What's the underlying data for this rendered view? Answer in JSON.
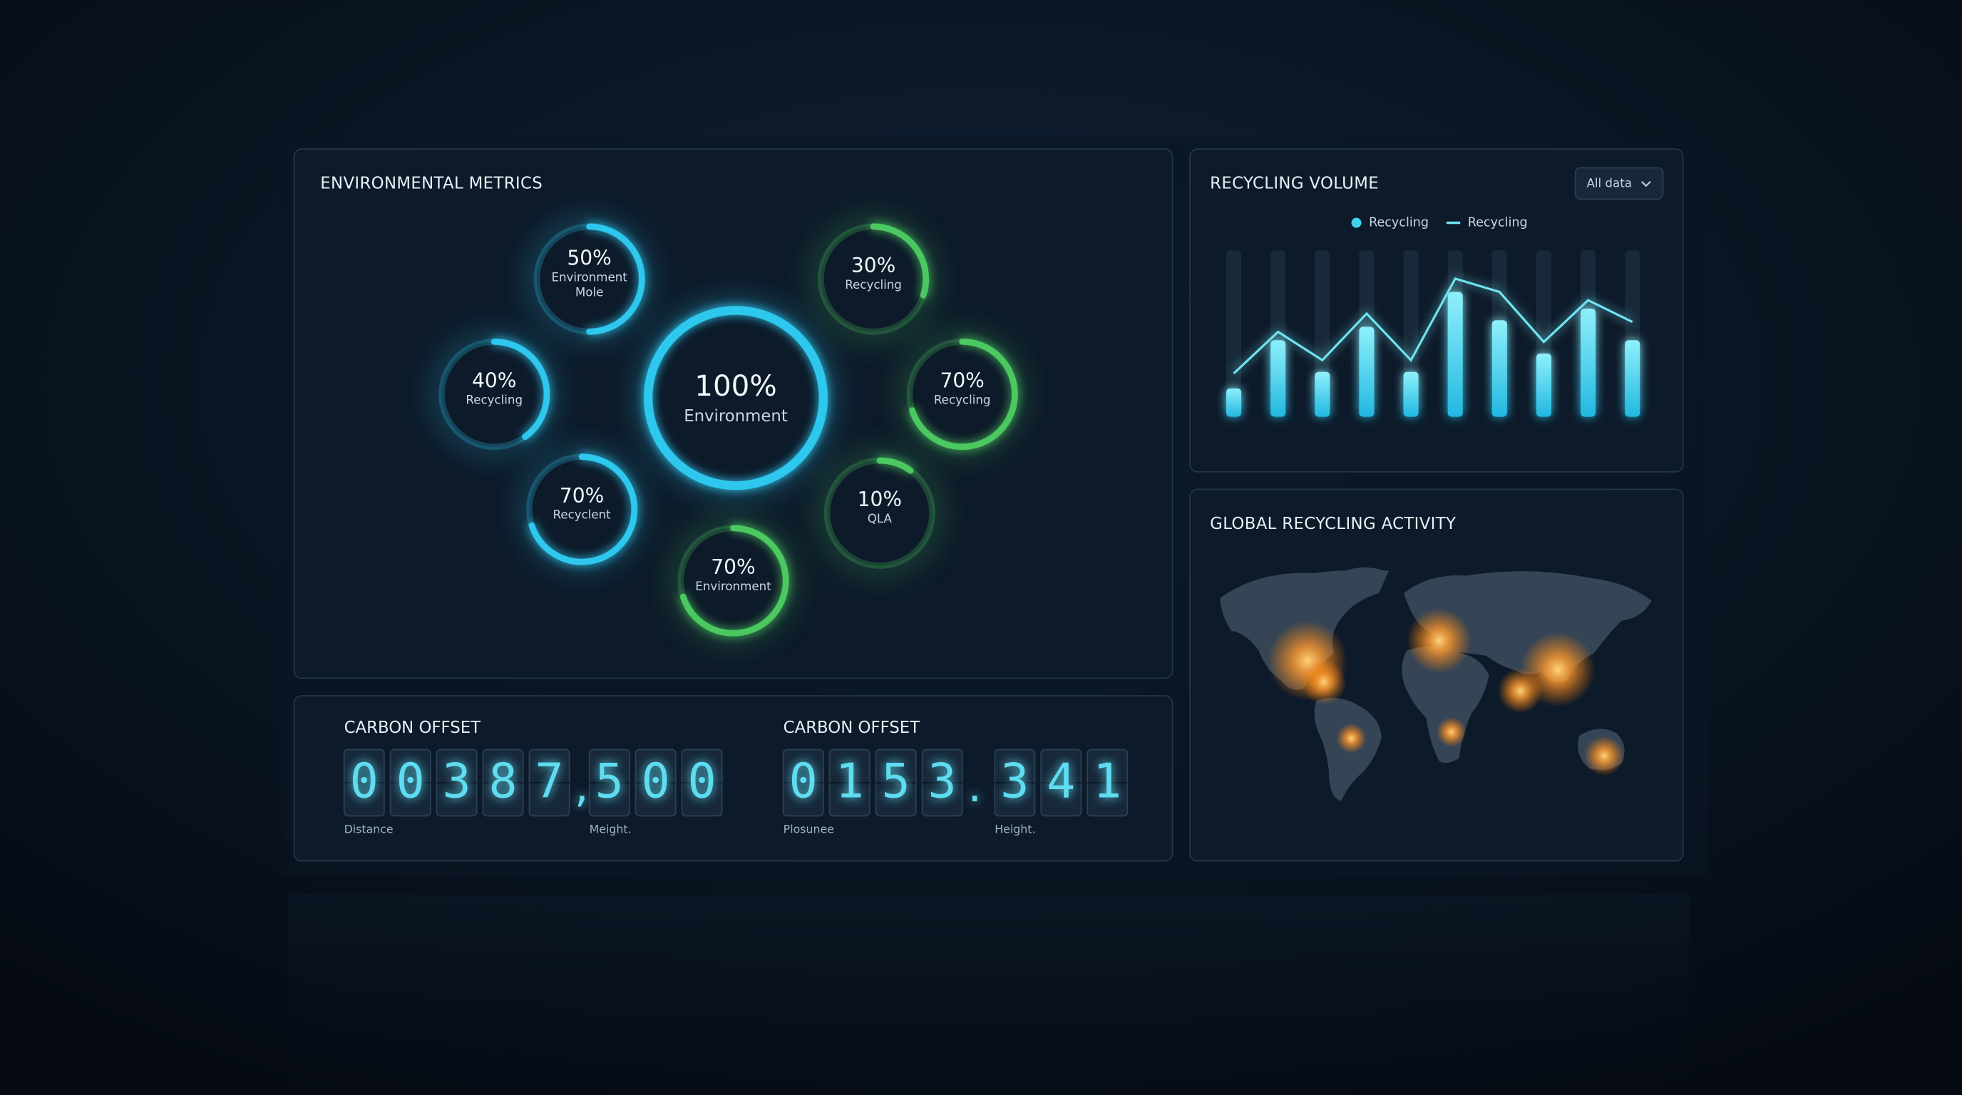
{
  "environmental_metrics": {
    "title": "ENVIRONMENTAL METRICS",
    "gauges": [
      {
        "value": 100,
        "label": "100%",
        "caption": [
          "Environment"
        ],
        "color": "#2ec8ee"
      },
      {
        "value": 50,
        "label": "50%",
        "caption": [
          "Environment",
          "Mole"
        ],
        "color": "#2ec8ee"
      },
      {
        "value": 40,
        "label": "40%",
        "caption": [
          "Recycling"
        ],
        "color": "#2ec8ee"
      },
      {
        "value": 70,
        "label": "70%",
        "caption": [
          "Recyclent"
        ],
        "color": "#2ec8ee"
      },
      {
        "value": 70,
        "label": "70%",
        "caption": [
          "Environment"
        ],
        "color": "#4cc860"
      },
      {
        "value": 10,
        "label": "10%",
        "caption": [
          "QLA"
        ],
        "color": "#4cc860"
      },
      {
        "value": 70,
        "label": "70%",
        "caption": [
          "Recycling"
        ],
        "color": "#4cc860"
      },
      {
        "value": 30,
        "label": "30%",
        "caption": [
          "Recycling"
        ],
        "color": "#4cc860"
      }
    ]
  },
  "chart_data": {
    "type": "bar",
    "title": "RECYCLING VOLUME",
    "filter": "All data",
    "categories": [
      null,
      null,
      null,
      null,
      null,
      null,
      null,
      null,
      null,
      null
    ],
    "ylim": [
      0,
      100
    ],
    "legend": "top",
    "series": [
      {
        "name": "Recycling",
        "type": "bar",
        "color": "#3fd3ef",
        "values": [
          17,
          46,
          27,
          54,
          27,
          75,
          58,
          38,
          65,
          46
        ]
      },
      {
        "name": "Recycling",
        "type": "line",
        "color": "#6fe3f0",
        "values": [
          26,
          51,
          34,
          62,
          34,
          83,
          75,
          45,
          70,
          57
        ]
      }
    ]
  },
  "carbon_offset": [
    {
      "title": "CARBON OFFSET",
      "digits": [
        "0",
        "0",
        "3",
        "8",
        "7",
        ",",
        "5",
        "0",
        "0"
      ],
      "labels": [
        "Distance",
        "Meight."
      ]
    },
    {
      "title": "CARBON OFFSET",
      "digits": [
        "0",
        "1",
        "5",
        "3",
        ".",
        "3",
        "4",
        "1"
      ],
      "labels": [
        "Plosunee",
        "Height."
      ]
    }
  ],
  "global_activity": {
    "title": "GLOBAL RECYCLING ACTIVITY"
  }
}
